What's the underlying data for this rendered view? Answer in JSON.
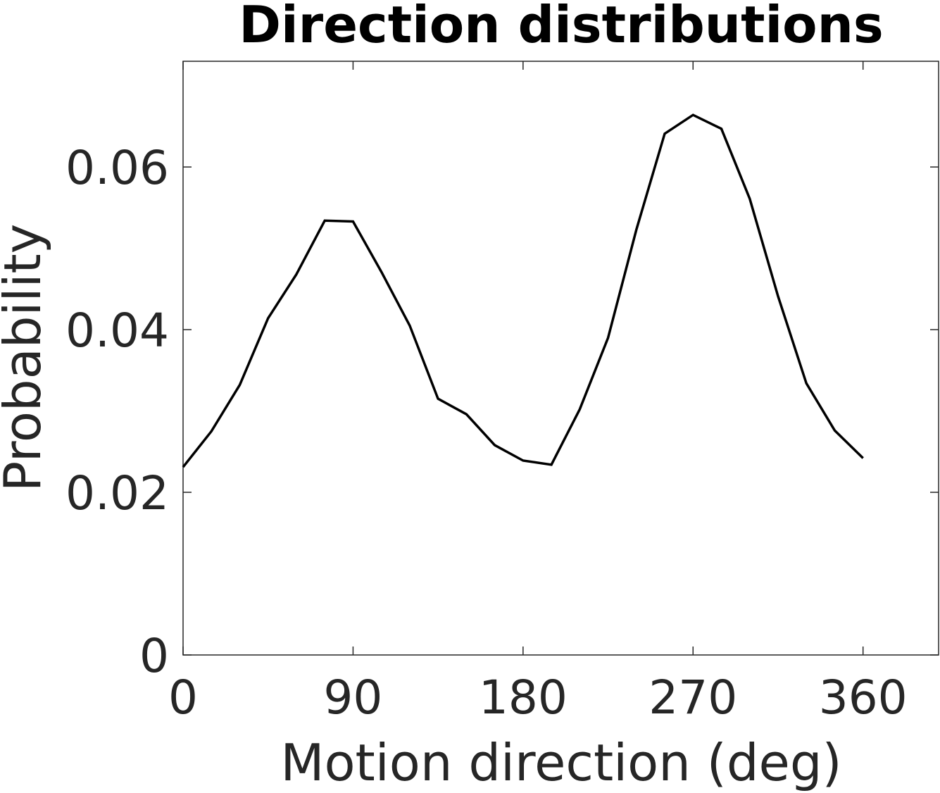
{
  "chart_data": {
    "type": "line",
    "title": "Direction distributions",
    "xlabel": "Motion direction (deg)",
    "ylabel": "Probability",
    "xlim": [
      0,
      400
    ],
    "ylim": [
      0,
      0.073
    ],
    "xticks": [
      0,
      90,
      180,
      270,
      360
    ],
    "xtick_labels": [
      "0",
      "90",
      "180",
      "270",
      "360"
    ],
    "yticks": [
      0,
      0.02,
      0.04,
      0.06
    ],
    "ytick_labels": [
      "0",
      "0.02",
      "0.04",
      "0.06"
    ],
    "grid": false,
    "line_color": "#000000",
    "series": [
      {
        "x": [
          0,
          15,
          30,
          45,
          60,
          75,
          90,
          105,
          120,
          135,
          150,
          165,
          180,
          195,
          210,
          225,
          240,
          255,
          270,
          285,
          300,
          315,
          330,
          345,
          360
        ],
        "y": [
          0.0231,
          0.0275,
          0.0332,
          0.0414,
          0.0468,
          0.0534,
          0.0533,
          0.0471,
          0.0405,
          0.0315,
          0.0296,
          0.0258,
          0.0239,
          0.0234,
          0.0302,
          0.039,
          0.0523,
          0.0641,
          0.0664,
          0.0647,
          0.0561,
          0.0441,
          0.0334,
          0.0276,
          0.0242
        ]
      }
    ]
  }
}
